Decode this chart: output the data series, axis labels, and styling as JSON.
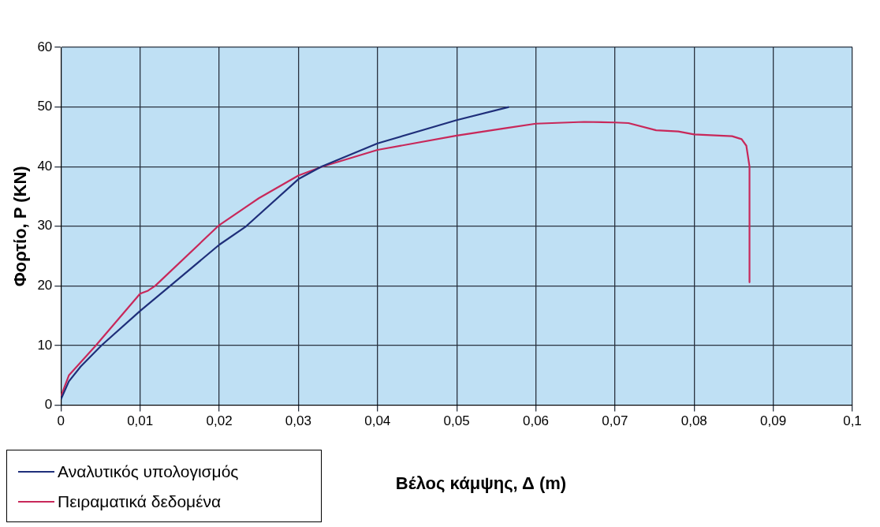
{
  "chart_data": {
    "type": "line",
    "xlabel": "Βέλος κάμψης, Δ (m)",
    "ylabel": "Φορτίο, P (KN)",
    "xlim": [
      0,
      0.1
    ],
    "xticks": [
      {
        "value": 0,
        "label": "0"
      },
      {
        "value": 0.01,
        "label": "0,01"
      },
      {
        "value": 0.02,
        "label": "0,02"
      },
      {
        "value": 0.03,
        "label": "0,03"
      },
      {
        "value": 0.04,
        "label": "0,04"
      },
      {
        "value": 0.05,
        "label": "0,05"
      },
      {
        "value": 0.06,
        "label": "0,06"
      },
      {
        "value": 0.07,
        "label": "0,07"
      },
      {
        "value": 0.08,
        "label": "0,08"
      },
      {
        "value": 0.09,
        "label": "0,09"
      },
      {
        "value": 0.1,
        "label": "0,1"
      }
    ],
    "ylim": [
      0,
      60
    ],
    "yticks": [
      0,
      10,
      20,
      30,
      40,
      50,
      60
    ],
    "grid": true,
    "legend": "bottom left",
    "marker": "none",
    "line_style": "solid",
    "series": [
      {
        "name": "Αναλυτικός υπολογισμός",
        "color": "#1f2f7a",
        "x": [
          0,
          0.001,
          0.0025,
          0.0051,
          0.01,
          0.0138,
          0.02,
          0.0234,
          0.03,
          0.0329,
          0.04,
          0.05,
          0.0566
        ],
        "values": [
          1,
          4,
          6.5,
          10,
          15.8,
          20,
          26.9,
          30,
          37.9,
          40,
          43.9,
          47.8,
          50
        ]
      },
      {
        "name": "Πειραματικά δεδομένα",
        "color": "#c8285a",
        "x": [
          0,
          0.001,
          0.0044,
          0.01,
          0.011,
          0.0119,
          0.02,
          0.025,
          0.03,
          0.033,
          0.04,
          0.05,
          0.0564,
          0.06,
          0.0661,
          0.07,
          0.0717,
          0.0752,
          0.078,
          0.08,
          0.0848,
          0.086,
          0.0866,
          0.087,
          0.087
        ],
        "values": [
          1.5,
          5,
          10,
          18.7,
          19.2,
          20,
          30.2,
          34.7,
          38.5,
          40,
          42.8,
          45.2,
          46.5,
          47.2,
          47.5,
          47.4,
          47.3,
          46.1,
          45.9,
          45.4,
          45.1,
          44.6,
          43.5,
          40,
          20.6
        ]
      }
    ]
  }
}
